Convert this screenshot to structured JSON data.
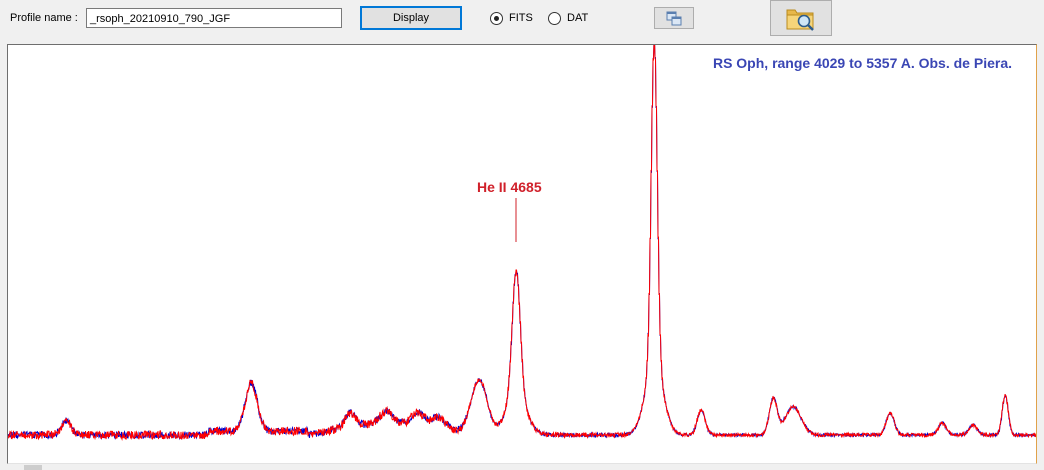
{
  "toolbar": {
    "profile_label": "Profile name :",
    "profile_value": "_rsoph_20210910_790_JGF",
    "display_label": "Display",
    "format_options": [
      {
        "label": "FITS",
        "selected": true
      },
      {
        "label": "DAT",
        "selected": false
      }
    ],
    "copy_icon": "copy-windows-icon",
    "open_icon": "folder-search-icon"
  },
  "plot": {
    "title": "RS Oph, range 4029 to 5357 A. Obs. de Piera.",
    "annotation": "He II 4685",
    "colors": {
      "series_primary": "#ff0000",
      "series_secondary": "#0000cc",
      "title": "#3a46b4",
      "annotation": "#d0202a"
    }
  }
}
